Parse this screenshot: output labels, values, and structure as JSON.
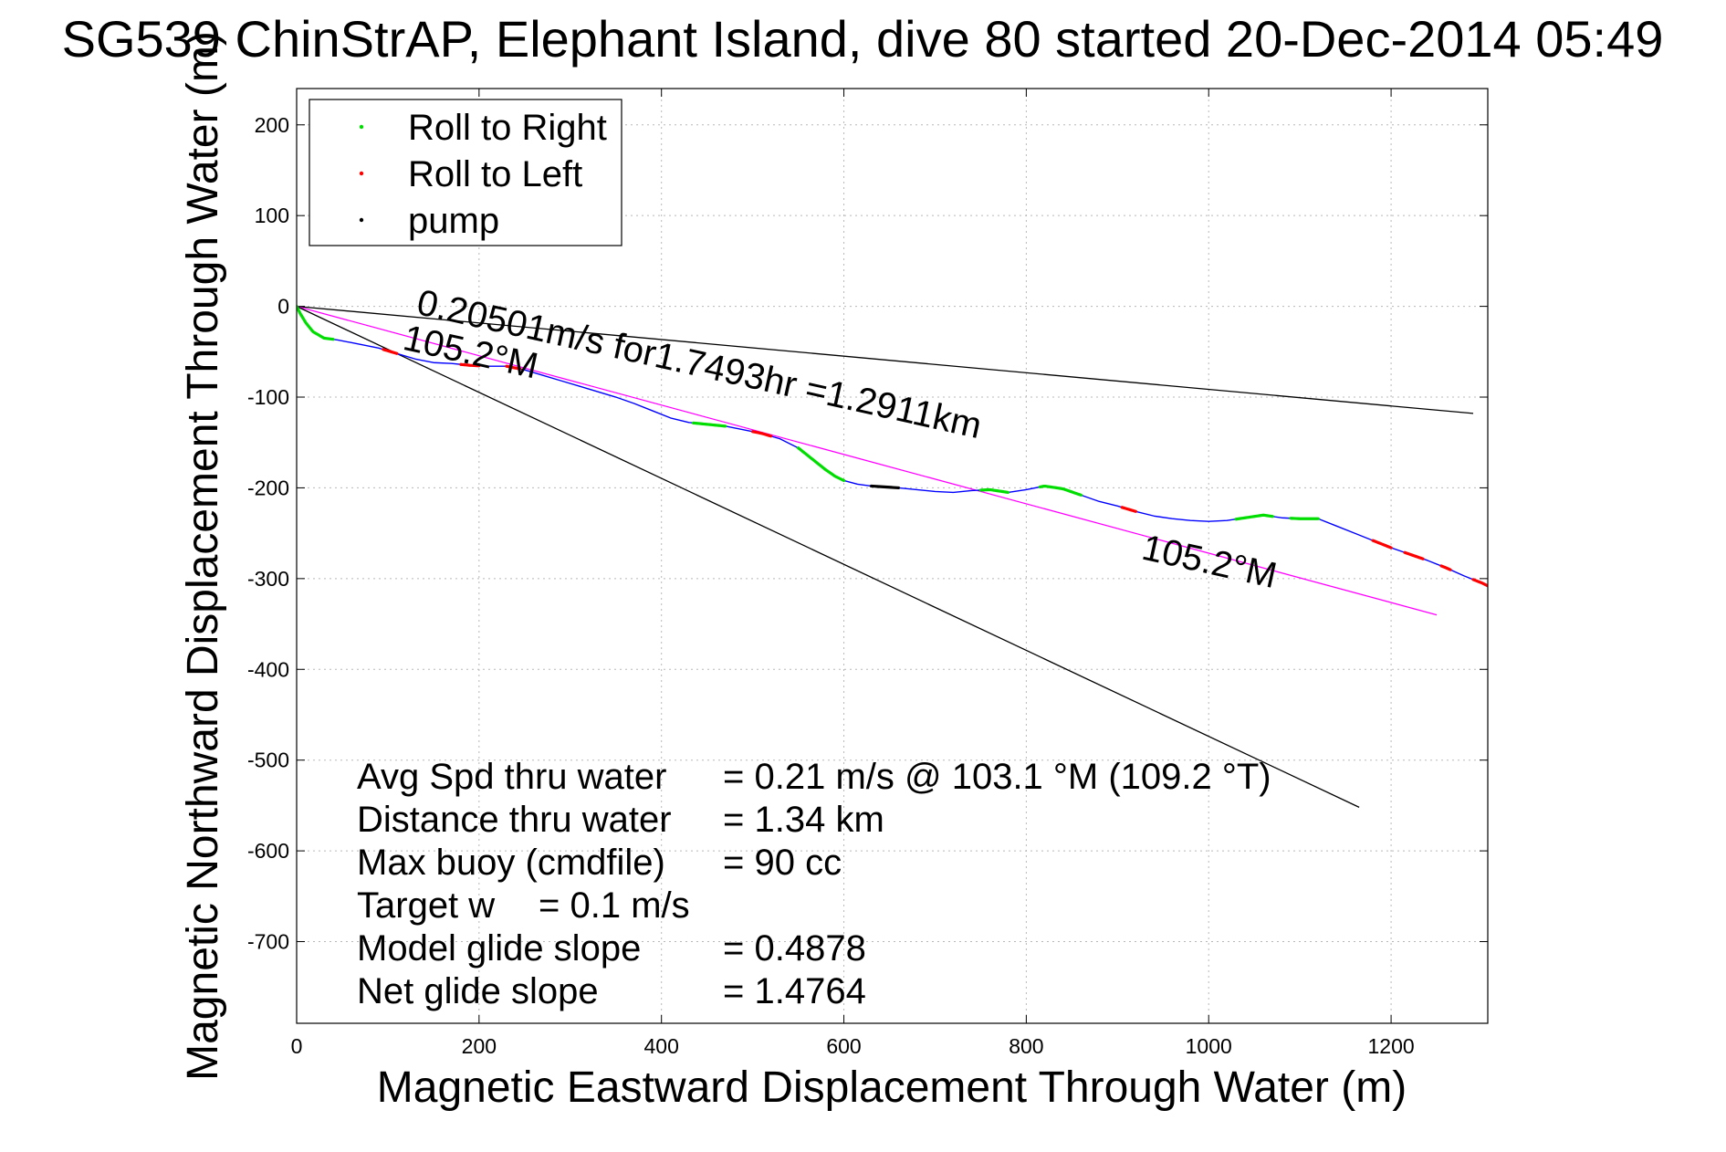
{
  "chart_data": {
    "type": "line",
    "title": "SG539 ChinStrAP, Elephant Island, dive 80 started 20-Dec-2014 05:49",
    "xlabel": "Magnetic Eastward Displacement Through Water (m)",
    "ylabel": "Magnetic Northward Displacement Through Water (m)",
    "xlim": [
      0,
      1306
    ],
    "ylim": [
      -790,
      240
    ],
    "xticks": [
      0,
      200,
      400,
      600,
      800,
      1000,
      1200
    ],
    "xtick_labels": [
      "0",
      "200",
      "400",
      "600",
      "800",
      "1000",
      "1200"
    ],
    "yticks": [
      200,
      100,
      0,
      -100,
      -200,
      -300,
      -400,
      -500,
      -600,
      -700
    ],
    "ytick_labels": [
      "200",
      "100",
      "0",
      "-100",
      "-200",
      "-300",
      "-400",
      "-500",
      "-600",
      "-700"
    ],
    "grid": true,
    "legend_position": "top-left",
    "legend": [
      {
        "label": "Roll to Right",
        "color": "#00dd00"
      },
      {
        "label": "Roll to Left",
        "color": "#ff0000"
      },
      {
        "label": "pump",
        "color": "#000000"
      }
    ],
    "track": {
      "name": "track",
      "color": "#0000ff",
      "x": [
        0,
        4,
        10,
        18,
        30,
        45,
        60,
        75,
        90,
        110,
        130,
        150,
        170,
        190,
        210,
        230,
        250,
        270,
        290,
        310,
        330,
        350,
        370,
        390,
        410,
        430,
        450,
        470,
        490,
        510,
        530,
        550,
        560,
        570,
        580,
        590,
        600,
        615,
        630,
        645,
        660,
        680,
        700,
        720,
        740,
        760,
        780,
        800,
        820,
        840,
        860,
        880,
        900,
        920,
        940,
        960,
        980,
        1000,
        1020,
        1040,
        1060,
        1080,
        1100,
        1120,
        1140,
        1160,
        1180,
        1200,
        1220,
        1240,
        1260,
        1280,
        1300,
        1306
      ],
      "y": [
        0,
        -8,
        -18,
        -28,
        -35,
        -37,
        -40,
        -43,
        -46,
        -52,
        -58,
        -62,
        -63,
        -65,
        -66,
        -66,
        -70,
        -76,
        -82,
        -88,
        -94,
        -100,
        -107,
        -115,
        -123,
        -128,
        -130,
        -132,
        -136,
        -140,
        -146,
        -156,
        -164,
        -172,
        -180,
        -187,
        -192,
        -196,
        -198,
        -199,
        -200,
        -202,
        -204,
        -205,
        -203,
        -202,
        -205,
        -202,
        -198,
        -201,
        -208,
        -215,
        -220,
        -226,
        -231,
        -234,
        -236,
        -237,
        -236,
        -233,
        -230,
        -233,
        -234,
        -234,
        -242,
        -250,
        -258,
        -266,
        -273,
        -280,
        -288,
        -297,
        -305,
        -308
      ]
    },
    "roll_right_segments": [
      [
        0,
        40
      ],
      [
        435,
        470
      ],
      [
        550,
        600
      ],
      [
        750,
        780
      ],
      [
        815,
        860
      ],
      [
        1030,
        1070
      ],
      [
        1090,
        1120
      ]
    ],
    "roll_left_segments": [
      [
        95,
        110
      ],
      [
        180,
        200
      ],
      [
        230,
        245
      ],
      [
        500,
        520
      ],
      [
        905,
        920
      ],
      [
        1180,
        1200
      ],
      [
        1215,
        1235
      ],
      [
        1255,
        1265
      ],
      [
        1290,
        1306
      ]
    ],
    "pump_segments": [
      [
        630,
        660
      ]
    ],
    "bearing_lines": [
      {
        "from": [
          0,
          0
        ],
        "to": [
          1290,
          -118
        ],
        "color": "#000000"
      },
      {
        "from": [
          0,
          0
        ],
        "to": [
          1250,
          -340
        ],
        "color": "#ff00ff"
      },
      {
        "from": [
          0,
          0
        ],
        "to": [
          1165,
          -552
        ],
        "color": "#000000"
      }
    ],
    "annotations": [
      {
        "text": "0.20501m/s for1.7493hr =1.2911km",
        "x": 130,
        "y": -8,
        "angle": 12.5
      },
      {
        "text": "105.2°M",
        "x": 115,
        "y": -47,
        "angle": 12.5
      },
      {
        "text": "105.2°M",
        "x": 925,
        "y": -278,
        "angle": 12.5
      }
    ],
    "stats": [
      {
        "label": "Avg Spd thru water",
        "value": "=  0.21 m/s @ 103.1 °M (109.2 °T)"
      },
      {
        "label": "Distance thru water",
        "value": "=  1.34 km"
      },
      {
        "label": "Max buoy (cmdfile)",
        "value": "= 90 cc"
      },
      {
        "label": "Target w",
        "value": "= 0.1 m/s"
      },
      {
        "label": "Model glide slope",
        "value": "= 0.4878"
      },
      {
        "label": "Net glide slope",
        "value": "= 1.4764"
      }
    ]
  }
}
